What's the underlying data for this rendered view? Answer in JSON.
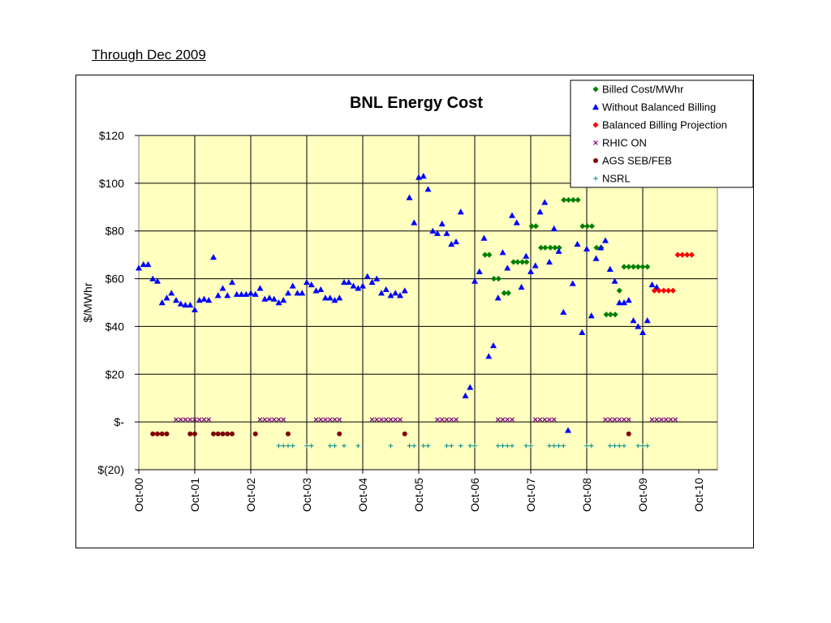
{
  "page": {
    "heading": "Through Dec 2009"
  },
  "chart_data": {
    "type": "scatter",
    "title": "BNL Energy Cost",
    "xlabel": "",
    "ylabel": "$/MWhr",
    "ylim": [
      -20,
      120
    ],
    "xlim": [
      0,
      124
    ],
    "x_unit": "months since Oct-00",
    "y_ticks": [
      {
        "value": 120,
        "label": "$120"
      },
      {
        "value": 100,
        "label": "$100"
      },
      {
        "value": 80,
        "label": "$80"
      },
      {
        "value": 60,
        "label": "$60"
      },
      {
        "value": 40,
        "label": "$40"
      },
      {
        "value": 20,
        "label": "$20"
      },
      {
        "value": 0,
        "label": "$-"
      },
      {
        "value": -20,
        "label": "$(20)"
      }
    ],
    "x_ticks": [
      {
        "value": 0,
        "label": "Oct-00"
      },
      {
        "value": 12,
        "label": "Oct-01"
      },
      {
        "value": 24,
        "label": "Oct-02"
      },
      {
        "value": 36,
        "label": "Oct-03"
      },
      {
        "value": 48,
        "label": "Oct-04"
      },
      {
        "value": 60,
        "label": "Oct-05"
      },
      {
        "value": 72,
        "label": "Oct-06"
      },
      {
        "value": 84,
        "label": "Oct-07"
      },
      {
        "value": 96,
        "label": "Oct-08"
      },
      {
        "value": 108,
        "label": "Oct-09"
      },
      {
        "value": 120,
        "label": "Oct-10"
      }
    ],
    "grid": true,
    "plot_background": "#FFFFC0",
    "legend_position": "top-right",
    "series": [
      {
        "name": "Billed Cost/MWhr",
        "marker": "diamond",
        "color": "#008000",
        "points": [
          [
            74.2,
            70
          ],
          [
            75.1,
            70
          ],
          [
            76.1,
            60
          ],
          [
            77.1,
            60
          ],
          [
            78.3,
            54
          ],
          [
            79.2,
            54
          ],
          [
            80.3,
            67
          ],
          [
            81.2,
            67
          ],
          [
            82.2,
            67
          ],
          [
            83.1,
            67
          ],
          [
            84.2,
            82
          ],
          [
            85.1,
            82
          ],
          [
            86.2,
            73
          ],
          [
            87.1,
            73
          ],
          [
            88.2,
            73
          ],
          [
            89.2,
            73
          ],
          [
            90.1,
            73
          ],
          [
            91.1,
            93
          ],
          [
            92.1,
            93
          ],
          [
            93.1,
            93
          ],
          [
            94.1,
            93
          ],
          [
            95.1,
            82
          ],
          [
            96.1,
            82
          ],
          [
            97.1,
            82
          ],
          [
            98.1,
            73
          ],
          [
            99.1,
            73
          ],
          [
            100.2,
            45
          ],
          [
            101.1,
            45
          ],
          [
            102.1,
            45
          ],
          [
            103.0,
            55
          ],
          [
            104.0,
            65
          ],
          [
            105.0,
            65
          ],
          [
            106.0,
            65
          ],
          [
            107.0,
            65
          ],
          [
            108.0,
            65
          ],
          [
            109.0,
            65
          ]
        ]
      },
      {
        "name": "Without Balanced Billing",
        "marker": "triangle",
        "color": "#0000FF",
        "points": [
          [
            0,
            64.5
          ],
          [
            1,
            66
          ],
          [
            2,
            66
          ],
          [
            3,
            60
          ],
          [
            4,
            59
          ],
          [
            5,
            50
          ],
          [
            6,
            52
          ],
          [
            7,
            54
          ],
          [
            8,
            51
          ],
          [
            9,
            49.5
          ],
          [
            10,
            49
          ],
          [
            11,
            49
          ],
          [
            12,
            47
          ],
          [
            13,
            51
          ],
          [
            14,
            51.5
          ],
          [
            15,
            51
          ],
          [
            16,
            69
          ],
          [
            17,
            53
          ],
          [
            18,
            56
          ],
          [
            19,
            53
          ],
          [
            20,
            58.5
          ],
          [
            21,
            53.5
          ],
          [
            22,
            53.5
          ],
          [
            23,
            53.5
          ],
          [
            24,
            54
          ],
          [
            25,
            53.5
          ],
          [
            26,
            56
          ],
          [
            27,
            51.5
          ],
          [
            28,
            52
          ],
          [
            29,
            51.5
          ],
          [
            30,
            50
          ],
          [
            31,
            51
          ],
          [
            32,
            54
          ],
          [
            33,
            57
          ],
          [
            34,
            54
          ],
          [
            35,
            54
          ],
          [
            36,
            58.5
          ],
          [
            37,
            57.5
          ],
          [
            38,
            55
          ],
          [
            39,
            55.5
          ],
          [
            40,
            52
          ],
          [
            41,
            52
          ],
          [
            42,
            51
          ],
          [
            43,
            52
          ],
          [
            44,
            58.5
          ],
          [
            45,
            58.5
          ],
          [
            46,
            57
          ],
          [
            47,
            56
          ],
          [
            48,
            57
          ],
          [
            49,
            61
          ],
          [
            50,
            58.5
          ],
          [
            51,
            60
          ],
          [
            52,
            54
          ],
          [
            53,
            55.5
          ],
          [
            54,
            53
          ],
          [
            55,
            54
          ],
          [
            56,
            53
          ],
          [
            57,
            55
          ],
          [
            58,
            94
          ],
          [
            59,
            83.5
          ],
          [
            60,
            102.5
          ],
          [
            61,
            103
          ],
          [
            62,
            97.5
          ],
          [
            63,
            80
          ],
          [
            64,
            79
          ],
          [
            65,
            83
          ],
          [
            66,
            79
          ],
          [
            67,
            74.5
          ],
          [
            68,
            75.5
          ],
          [
            69,
            88
          ],
          [
            70,
            11
          ],
          [
            71,
            14.5
          ],
          [
            72,
            59
          ],
          [
            73,
            63
          ],
          [
            74,
            77
          ],
          [
            75,
            27.5
          ],
          [
            76,
            32
          ],
          [
            77,
            52
          ],
          [
            78,
            71
          ],
          [
            79,
            64.5
          ],
          [
            80,
            86.5
          ],
          [
            81,
            83.5
          ],
          [
            82,
            56.5
          ],
          [
            83,
            69.5
          ],
          [
            84,
            63
          ],
          [
            85,
            65.5
          ],
          [
            86,
            88
          ],
          [
            87,
            92
          ],
          [
            88,
            67
          ],
          [
            89,
            81
          ],
          [
            90,
            71.5
          ],
          [
            91,
            46
          ],
          [
            92,
            -3.5
          ],
          [
            93,
            58
          ],
          [
            94,
            74.5
          ],
          [
            95,
            37.5
          ],
          [
            96,
            72.5
          ],
          [
            97,
            44.5
          ],
          [
            98,
            68.5
          ],
          [
            99,
            73
          ],
          [
            100,
            76
          ],
          [
            101,
            64
          ],
          [
            102,
            59
          ],
          [
            103,
            50
          ],
          [
            104,
            50
          ],
          [
            105,
            51
          ],
          [
            106,
            42.5
          ],
          [
            107,
            40
          ],
          [
            108,
            37.5
          ],
          [
            109,
            42.5
          ],
          [
            110,
            57.5
          ],
          [
            111,
            56.5
          ]
        ]
      },
      {
        "name": "Balanced Billing Projection",
        "marker": "diamond",
        "color": "#FF0000",
        "points": [
          [
            110.5,
            55
          ],
          [
            111.5,
            55
          ],
          [
            112.5,
            55
          ],
          [
            113.5,
            55
          ],
          [
            114.5,
            55
          ],
          [
            115.5,
            70
          ],
          [
            116.5,
            70
          ],
          [
            117.5,
            70
          ],
          [
            118.5,
            70
          ]
        ]
      },
      {
        "name": "RHIC ON",
        "marker": "x",
        "color": "#800080",
        "points": [
          [
            8,
            1
          ],
          [
            9,
            1
          ],
          [
            10,
            1
          ],
          [
            11,
            1
          ],
          [
            12,
            1
          ],
          [
            13,
            1
          ],
          [
            14,
            1
          ],
          [
            15,
            1
          ],
          [
            26,
            1
          ],
          [
            27,
            1
          ],
          [
            28,
            1
          ],
          [
            29,
            1
          ],
          [
            30,
            1
          ],
          [
            31,
            1
          ],
          [
            38,
            1
          ],
          [
            39,
            1
          ],
          [
            40,
            1
          ],
          [
            41,
            1
          ],
          [
            42,
            1
          ],
          [
            43,
            1
          ],
          [
            50,
            1
          ],
          [
            51,
            1
          ],
          [
            52,
            1
          ],
          [
            53,
            1
          ],
          [
            54,
            1
          ],
          [
            55,
            1
          ],
          [
            56,
            1
          ],
          [
            64,
            1
          ],
          [
            65,
            1
          ],
          [
            66,
            1
          ],
          [
            67,
            1
          ],
          [
            68,
            1
          ],
          [
            77,
            1
          ],
          [
            78,
            1
          ],
          [
            79,
            1
          ],
          [
            80,
            1
          ],
          [
            85,
            1
          ],
          [
            86,
            1
          ],
          [
            87,
            1
          ],
          [
            88,
            1
          ],
          [
            89,
            1
          ],
          [
            100,
            1
          ],
          [
            101,
            1
          ],
          [
            102,
            1
          ],
          [
            103,
            1
          ],
          [
            104,
            1
          ],
          [
            105,
            1
          ],
          [
            110,
            1
          ],
          [
            111,
            1
          ],
          [
            112,
            1
          ],
          [
            113,
            1
          ],
          [
            114,
            1
          ],
          [
            115,
            1
          ]
        ]
      },
      {
        "name": "AGS SEB/FEB",
        "marker": "circle",
        "color": "#800000",
        "points": [
          [
            3,
            -5
          ],
          [
            4,
            -5
          ],
          [
            5,
            -5
          ],
          [
            6,
            -5
          ],
          [
            11,
            -5
          ],
          [
            12,
            -5
          ],
          [
            16,
            -5
          ],
          [
            17,
            -5
          ],
          [
            18,
            -5
          ],
          [
            19,
            -5
          ],
          [
            20,
            -5
          ],
          [
            25,
            -5
          ],
          [
            32,
            -5
          ],
          [
            43,
            -5
          ],
          [
            57,
            -5
          ],
          [
            105,
            -5
          ]
        ]
      },
      {
        "name": "NSRL",
        "marker": "plus",
        "color": "#008B8B",
        "points": [
          [
            30,
            -10
          ],
          [
            31,
            -10
          ],
          [
            32,
            -10
          ],
          [
            33,
            -10
          ],
          [
            36,
            -10
          ],
          [
            37,
            -10
          ],
          [
            41,
            -10
          ],
          [
            42,
            -10
          ],
          [
            44,
            -10
          ],
          [
            47,
            -10
          ],
          [
            54,
            -10
          ],
          [
            58,
            -10
          ],
          [
            59,
            -10
          ],
          [
            61,
            -10
          ],
          [
            62,
            -10
          ],
          [
            66,
            -10
          ],
          [
            67,
            -10
          ],
          [
            69,
            -10
          ],
          [
            71,
            -10
          ],
          [
            72,
            -10
          ],
          [
            77,
            -10
          ],
          [
            78,
            -10
          ],
          [
            79,
            -10
          ],
          [
            80,
            -10
          ],
          [
            83,
            -10
          ],
          [
            84,
            -10
          ],
          [
            88,
            -10
          ],
          [
            89,
            -10
          ],
          [
            90,
            -10
          ],
          [
            91,
            -10
          ],
          [
            96,
            -10
          ],
          [
            97,
            -10
          ],
          [
            101,
            -10
          ],
          [
            102,
            -10
          ],
          [
            103,
            -10
          ],
          [
            104,
            -10
          ],
          [
            107,
            -10
          ],
          [
            108,
            -10
          ],
          [
            109,
            -10
          ]
        ]
      }
    ]
  }
}
